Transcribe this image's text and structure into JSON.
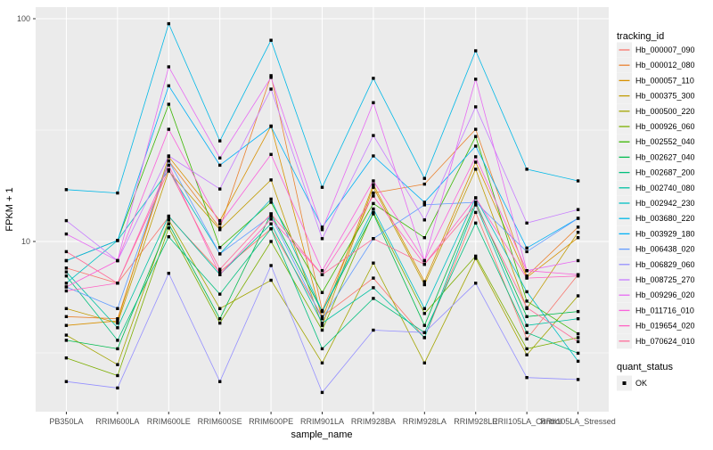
{
  "chart_data": {
    "type": "line",
    "xlabel": "sample_name",
    "ylabel": "FPKM + 1",
    "y_scale": "log10",
    "y_ticks": [
      100,
      10
    ],
    "y_minor": [
      31.62,
      3.162
    ],
    "ylim": [
      1.72,
      112.0
    ],
    "legend_title": "tracking_id",
    "legend2_title": "quant_status",
    "legend2_items": [
      "OK"
    ],
    "marker": "black-square",
    "categories": [
      "PB350LA",
      "RRIM600LA",
      "RRIM600LE",
      "RRIM600SE",
      "RRIM600PE",
      "RRIM901LA",
      "RRIM928BA",
      "RRIM928LA",
      "RRIM928LE",
      "RRII105LA_Control",
      "RRII105LA_Stressed"
    ],
    "series": [
      {
        "name": "Hb_000007_090",
        "color": "#F8766D",
        "values": [
          7.6,
          6.5,
          12.9,
          7.3,
          11.4,
          4.6,
          6.85,
          3.7,
          13.5,
          3.65,
          7.1
        ]
      },
      {
        "name": "Hb_000012_080",
        "color": "#EA8331",
        "values": [
          4.6,
          4.5,
          23.0,
          11.5,
          55.5,
          4.9,
          16.5,
          18.1,
          31.9,
          7.0,
          11.6
        ]
      },
      {
        "name": "Hb_000057_110",
        "color": "#D89000",
        "values": [
          4.2,
          4.4,
          24.0,
          12.4,
          33.0,
          4.5,
          18.0,
          6.6,
          22.7,
          6.9,
          10.4
        ]
      },
      {
        "name": "Hb_000375_300",
        "color": "#C09B00",
        "values": [
          5.0,
          4.3,
          20.7,
          11.3,
          18.9,
          4.2,
          17.5,
          6.4,
          21.1,
          5.0,
          11.0
        ]
      },
      {
        "name": "Hb_000500_220",
        "color": "#A3A500",
        "values": [
          3.8,
          2.8,
          12.5,
          5.0,
          6.7,
          2.85,
          8.0,
          2.85,
          8.4,
          3.1,
          5.7
        ]
      },
      {
        "name": "Hb_000926_060",
        "color": "#7CAE00",
        "values": [
          3.0,
          2.5,
          11.5,
          4.3,
          10.0,
          4.0,
          13.5,
          4.75,
          8.6,
          3.3,
          3.7
        ]
      },
      {
        "name": "Hb_002552_040",
        "color": "#39B600",
        "values": [
          8.2,
          10.1,
          41.3,
          9.4,
          15.0,
          5.9,
          14.8,
          10.4,
          29.6,
          5.4,
          3.85
        ]
      },
      {
        "name": "Hb_002627_040",
        "color": "#00BB4E",
        "values": [
          3.6,
          3.3,
          12.0,
          4.5,
          13.3,
          4.85,
          13.3,
          4.2,
          15.0,
          4.6,
          4.85
        ]
      },
      {
        "name": "Hb_002687_200",
        "color": "#00BF7D",
        "values": [
          7.0,
          3.6,
          10.5,
          5.8,
          11.4,
          3.3,
          5.55,
          3.9,
          12.1,
          3.9,
          3.15
        ]
      },
      {
        "name": "Hb_002740_080",
        "color": "#00C1A3",
        "values": [
          7.3,
          4.1,
          13.0,
          7.1,
          12.0,
          4.3,
          6.2,
          3.7,
          14.6,
          4.2,
          4.5
        ]
      },
      {
        "name": "Hb_002942_230",
        "color": "#00BFC4",
        "values": [
          6.5,
          10.1,
          20.9,
          8.8,
          15.5,
          4.85,
          14.0,
          5.0,
          15.7,
          5.95,
          2.9
        ]
      },
      {
        "name": "Hb_003680_220",
        "color": "#00B8E7",
        "values": [
          17.1,
          16.5,
          95.0,
          28.3,
          80.0,
          17.5,
          54.0,
          19.2,
          71.8,
          21.1,
          18.7
        ]
      },
      {
        "name": "Hb_003929_180",
        "color": "#00B0F6",
        "values": [
          8.2,
          10.1,
          50.0,
          22.0,
          32.8,
          11.6,
          24.2,
          15.0,
          26.8,
          9.35,
          12.7
        ]
      },
      {
        "name": "Hb_006438_020",
        "color": "#619CFF",
        "values": [
          6.25,
          5.0,
          23.0,
          8.8,
          13.0,
          4.5,
          10.3,
          14.6,
          15.0,
          9.0,
          12.7
        ]
      },
      {
        "name": "Hb_006829_060",
        "color": "#9590FF",
        "values": [
          2.35,
          2.2,
          7.2,
          2.35,
          7.8,
          2.1,
          4.0,
          3.9,
          6.5,
          2.45,
          2.4
        ]
      },
      {
        "name": "Hb_008725_270",
        "color": "#C77CFF",
        "values": [
          12.4,
          8.2,
          24.2,
          17.2,
          48.3,
          10.3,
          29.9,
          12.5,
          40.2,
          12.1,
          13.9
        ]
      },
      {
        "name": "Hb_009296_020",
        "color": "#E76BF3",
        "values": [
          10.8,
          8.2,
          60.8,
          23.7,
          54.5,
          11.3,
          42.0,
          8.2,
          53.5,
          7.4,
          8.2
        ]
      },
      {
        "name": "Hb_011716_010",
        "color": "#FA62DB",
        "values": [
          6.25,
          8.2,
          31.9,
          12.0,
          24.6,
          7.4,
          18.7,
          8.2,
          24.0,
          7.4,
          7.1
        ]
      },
      {
        "name": "Hb_019654_020",
        "color": "#FF61C3",
        "values": [
          6.0,
          6.5,
          22.0,
          7.1,
          12.6,
          7.1,
          16.0,
          7.9,
          15.7,
          6.85,
          7.0
        ]
      },
      {
        "name": "Hb_070624_010",
        "color": "#FF6A98",
        "values": [
          9.0,
          6.5,
          21.0,
          7.5,
          13.3,
          7.1,
          10.3,
          7.9,
          14.6,
          5.05,
          3.55
        ]
      }
    ]
  },
  "colors": {
    "panel_bg": "#EBEBEB",
    "grid": "#FFFFFF",
    "tick_label": "#4D4D4D",
    "axis_title": "#000000",
    "legend_key_bg": "#EFEFEF",
    "point": "#000000",
    "tick_mark": "#333333"
  }
}
